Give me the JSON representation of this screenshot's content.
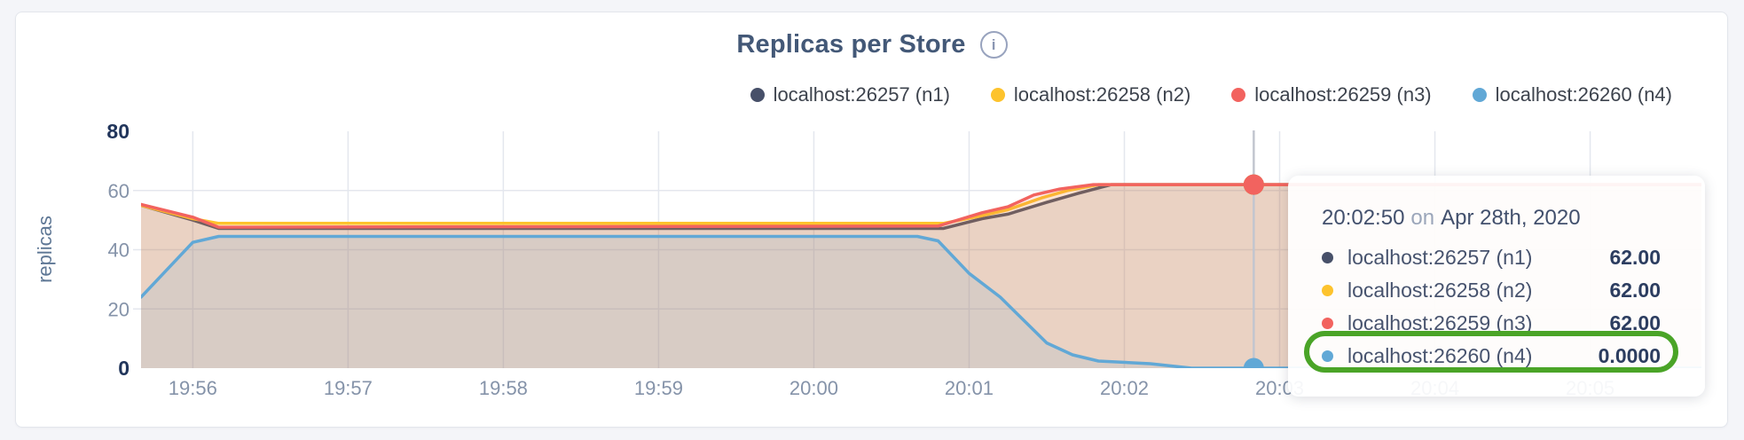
{
  "header": {
    "title": "Replicas per Store",
    "info_icon": "i"
  },
  "legend": {
    "items": [
      {
        "label": "localhost:26257 (n1)",
        "color": "#475069"
      },
      {
        "label": "localhost:26258 (n2)",
        "color": "#fdc32d"
      },
      {
        "label": "localhost:26259 (n3)",
        "color": "#f2635f"
      },
      {
        "label": "localhost:26260 (n4)",
        "color": "#61a8d6"
      }
    ]
  },
  "chart_data": {
    "type": "area",
    "title": "Replicas per Store",
    "xlabel": "",
    "ylabel": "replicas",
    "ylim": [
      0,
      80
    ],
    "yticks": [
      0,
      20,
      40,
      60,
      80
    ],
    "xticks": [
      "19:56",
      "19:57",
      "19:58",
      "19:59",
      "20:00",
      "20:01",
      "20:02",
      "20:03",
      "20:04",
      "20:05"
    ],
    "x_domain": [
      "19:55:40",
      "20:05:43"
    ],
    "grid": true,
    "legend_position": "top-right",
    "fill_opacity": 0.13,
    "series": [
      {
        "name": "localhost:26257 (n1)",
        "color": "#475069",
        "points": [
          [
            "19:55:40",
            55
          ],
          [
            "19:56:00",
            50
          ],
          [
            "19:56:10",
            47.2
          ],
          [
            "20:00:50",
            47.2
          ],
          [
            "20:01:05",
            50.5
          ],
          [
            "20:01:15",
            52
          ],
          [
            "20:01:30",
            56
          ],
          [
            "20:01:42",
            59
          ],
          [
            "20:01:55",
            62
          ],
          [
            "20:05:43",
            62
          ]
        ]
      },
      {
        "name": "localhost:26258 (n2)",
        "color": "#fdc32d",
        "points": [
          [
            "19:55:40",
            55
          ],
          [
            "19:56:00",
            50.5
          ],
          [
            "19:56:10",
            48.9
          ],
          [
            "20:00:50",
            48.9
          ],
          [
            "20:01:05",
            51.5
          ],
          [
            "20:01:15",
            53.5
          ],
          [
            "20:01:28",
            57.5
          ],
          [
            "20:01:38",
            60
          ],
          [
            "20:01:50",
            62
          ],
          [
            "20:05:43",
            62
          ]
        ]
      },
      {
        "name": "localhost:26259 (n3)",
        "color": "#f2635f",
        "points": [
          [
            "19:55:40",
            55.3
          ],
          [
            "19:56:00",
            51
          ],
          [
            "19:56:10",
            47.6
          ],
          [
            "20:00:48",
            48
          ],
          [
            "20:01:05",
            52.5
          ],
          [
            "20:01:15",
            54.5
          ],
          [
            "20:01:25",
            58.5
          ],
          [
            "20:01:35",
            60.5
          ],
          [
            "20:01:48",
            62
          ],
          [
            "20:05:43",
            62
          ]
        ]
      },
      {
        "name": "localhost:26260 (n4)",
        "color": "#61a8d6",
        "points": [
          [
            "19:55:40",
            24
          ],
          [
            "19:56:00",
            42.5
          ],
          [
            "19:56:10",
            44.5
          ],
          [
            "20:00:40",
            44.5
          ],
          [
            "20:00:48",
            43
          ],
          [
            "20:01:00",
            32
          ],
          [
            "20:01:12",
            24
          ],
          [
            "20:01:30",
            8.5
          ],
          [
            "20:01:40",
            4.5
          ],
          [
            "20:01:50",
            2.4
          ],
          [
            "20:02:10",
            1.5
          ],
          [
            "20:02:26",
            0
          ],
          [
            "20:05:43",
            0
          ]
        ]
      }
    ],
    "hover": {
      "time": "20:02:50",
      "points": [
        {
          "series": "localhost:26257 (n1)",
          "value": 62
        },
        {
          "series": "localhost:26258 (n2)",
          "value": 62
        },
        {
          "series": "localhost:26259 (n3)",
          "value": 62
        },
        {
          "series": "localhost:26260 (n4)",
          "value": 0
        }
      ]
    }
  },
  "tooltip": {
    "time": "20:02:50",
    "connector": "on",
    "date": "Apr 28th, 2020",
    "rows": [
      {
        "label": "localhost:26257 (n1)",
        "value": "62.00",
        "color": "#475069",
        "highlighted": false
      },
      {
        "label": "localhost:26258 (n2)",
        "value": "62.00",
        "color": "#fdc32d",
        "highlighted": false
      },
      {
        "label": "localhost:26259 (n3)",
        "value": "62.00",
        "color": "#f2635f",
        "highlighted": false
      },
      {
        "label": "localhost:26260 (n4)",
        "value": "0.0000",
        "color": "#61a8d6",
        "highlighted": true
      }
    ],
    "highlight_color": "#4aa427"
  },
  "colors": {
    "page_background": "#f4f5f9",
    "card_background": "#ffffff",
    "card_border": "#e3e6ec",
    "gridline": "#e4e7ee",
    "hover_line": "#c2c6cf",
    "tick_minor": "#8593a9",
    "tick_major": "#21355b",
    "title": "#435877"
  }
}
